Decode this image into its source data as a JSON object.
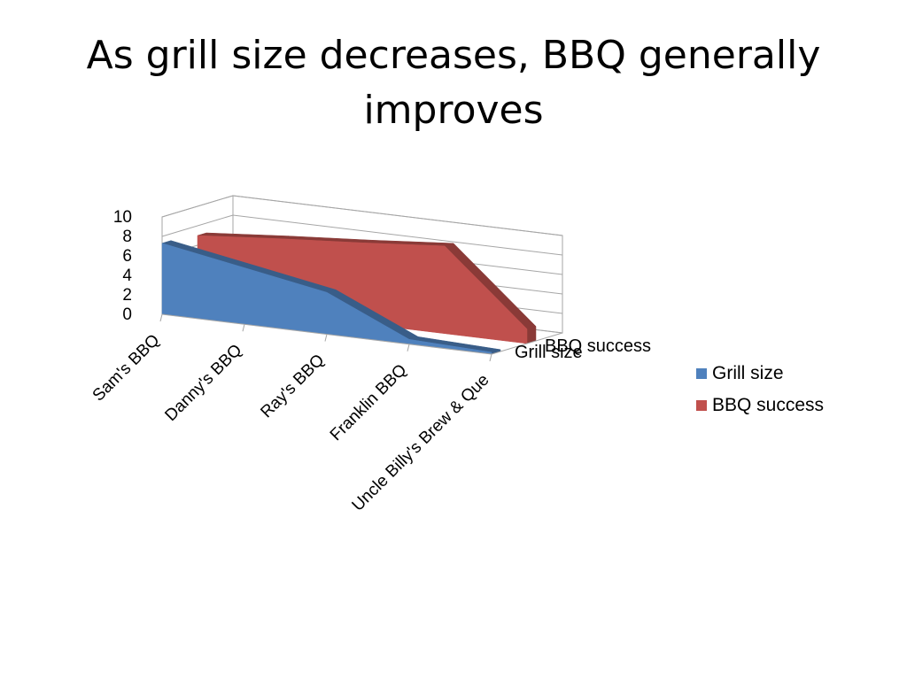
{
  "chart_data": {
    "type": "area",
    "title": "As grill size decreases, BBQ generally improves",
    "categories": [
      "Sam's BBQ",
      "Danny's BBQ",
      "Ray's BBQ",
      "Franklin BBQ",
      "Uncle Billy's Brew & Que"
    ],
    "series": [
      {
        "name": "Grill size",
        "values": [
          7.3,
          5.8,
          4.3,
          0.5,
          0.2
        ],
        "color": "#4F81BD"
      },
      {
        "name": "BBQ success",
        "values": [
          7.0,
          7.7,
          8.3,
          9.0,
          1.5
        ],
        "color": "#C0504D"
      }
    ],
    "yticks": [
      "0",
      "2",
      "4",
      "6",
      "8",
      "10"
    ],
    "ylim": [
      0,
      10
    ],
    "xlabel": "",
    "ylabel": "",
    "grid": true,
    "legend_position": "right",
    "three_d": true
  }
}
